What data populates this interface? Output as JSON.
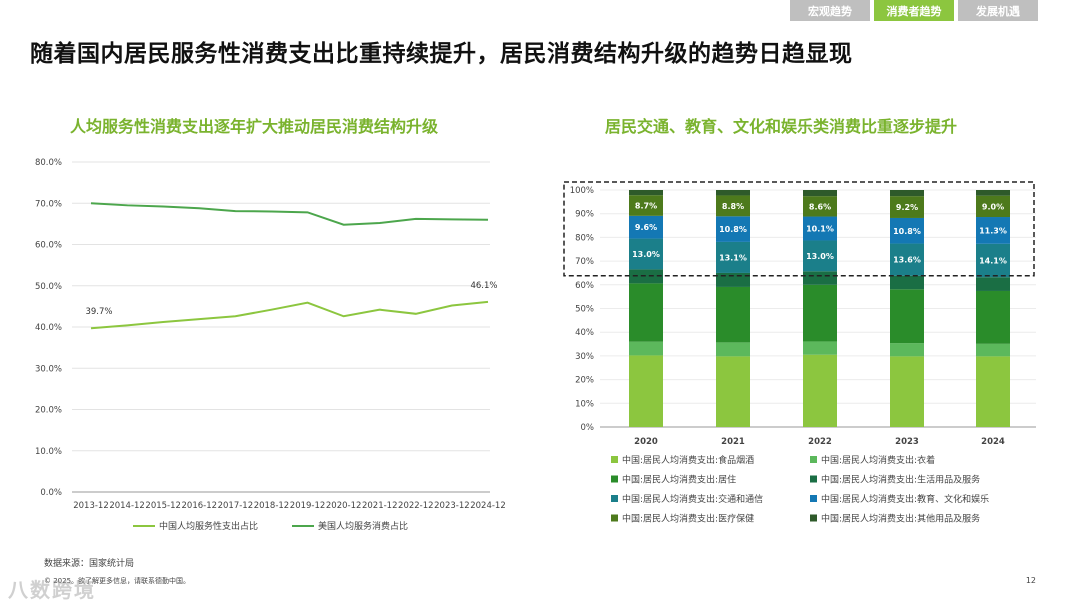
{
  "nav": {
    "tabs": [
      {
        "label": "宏观趋势",
        "active": false
      },
      {
        "label": "消费者趋势",
        "active": true
      },
      {
        "label": "发展机遇",
        "active": false
      }
    ]
  },
  "page_title": "随着国内居民服务性消费支出比重持续提升，居民消费结构升级的趋势日趋显现",
  "left_subtitle": "人均服务性消费支出逐年扩大推动居民消费结构升级",
  "right_subtitle": "居民交通、教育、文化和娱乐类消费比重逐步提升",
  "source": "数据来源：国家统计局",
  "footer_note": "© 2025。欲了解更多信息，请联系德勤中国。",
  "page_number": "12",
  "watermark": "八数跨境",
  "chart_data": [
    {
      "type": "line",
      "x": [
        "2013-12",
        "2014-12",
        "2015-12",
        "2016-12",
        "2017-12",
        "2018-12",
        "2019-12",
        "2020-12",
        "2021-12",
        "2022-12",
        "2023-12",
        "2024-12"
      ],
      "yticks": [
        "0.0%",
        "10.0%",
        "20.0%",
        "30.0%",
        "40.0%",
        "50.0%",
        "60.0%",
        "70.0%",
        "80.0%"
      ],
      "ylim": [
        0,
        80
      ],
      "grid": true,
      "legend": "bottom",
      "series": [
        {
          "name": "中国人均服务性支出占比",
          "color": "#8cc63f",
          "values": [
            39.7,
            40.4,
            41.2,
            41.9,
            42.6,
            44.2,
            45.9,
            42.6,
            44.2,
            43.2,
            45.2,
            46.1
          ],
          "labels": [
            {
              "index": 0,
              "text": "39.7%"
            },
            {
              "index": 11,
              "text": "46.1%"
            }
          ]
        },
        {
          "name": "美国人均服务消费占比",
          "color": "#4ca64c",
          "values": [
            70.0,
            69.5,
            69.2,
            68.8,
            68.1,
            68.0,
            67.8,
            64.8,
            65.2,
            66.2,
            66.1,
            66.0
          ]
        }
      ]
    },
    {
      "type": "bar",
      "stacked": true,
      "categories": [
        "2020",
        "2021",
        "2022",
        "2023",
        "2024"
      ],
      "yticks": [
        "0%",
        "10%",
        "20%",
        "30%",
        "40%",
        "50%",
        "60%",
        "70%",
        "80%",
        "90%",
        "100%"
      ],
      "ylim": [
        0,
        100
      ],
      "legend": "bottom",
      "highlight_range": [
        63.8,
        100
      ],
      "series": [
        {
          "name": "中国:居民人均消费支出:食品烟酒",
          "color": "#8cc63f",
          "values": [
            30.2,
            29.8,
            30.5,
            29.8,
            29.8
          ]
        },
        {
          "name": "中国:居民人均消费支出:衣着",
          "color": "#5cb85c",
          "values": [
            5.8,
            5.9,
            5.6,
            5.6,
            5.3
          ]
        },
        {
          "name": "中国:居民人均消费支出:居住",
          "color": "#2a8c2a",
          "values": [
            24.6,
            23.4,
            23.9,
            22.7,
            22.3
          ]
        },
        {
          "name": "中国:居民人均消费支出:生活用品及服务",
          "color": "#1a6e44",
          "values": [
            5.9,
            5.9,
            5.7,
            5.7,
            5.8
          ]
        },
        {
          "name": "中国:居民人均消费支出:交通和通信",
          "color": "#1b7f8a",
          "values": [
            13.0,
            13.1,
            13.0,
            13.6,
            14.1
          ],
          "labels": [
            "13.0%",
            "13.1%",
            "13.0%",
            "13.6%",
            "14.1%"
          ]
        },
        {
          "name": "中国:居民人均消费支出:教育、文化和娱乐",
          "color": "#1478b4",
          "values": [
            9.6,
            10.8,
            10.1,
            10.8,
            11.3
          ],
          "labels": [
            "9.6%",
            "10.8%",
            "10.1%",
            "10.8%",
            "11.3%"
          ]
        },
        {
          "name": "中国:居民人均消费支出:医疗保健",
          "color": "#4d7a1c",
          "values": [
            8.7,
            8.8,
            8.6,
            9.2,
            9.0
          ],
          "labels": [
            "8.7%",
            "8.8%",
            "8.6%",
            "9.2%",
            "9.0%"
          ]
        },
        {
          "name": "中国:居民人均消费支出:其他用品及服务",
          "color": "#2e5a2a",
          "values": [
            2.2,
            2.3,
            2.6,
            2.6,
            2.4
          ]
        }
      ]
    }
  ]
}
